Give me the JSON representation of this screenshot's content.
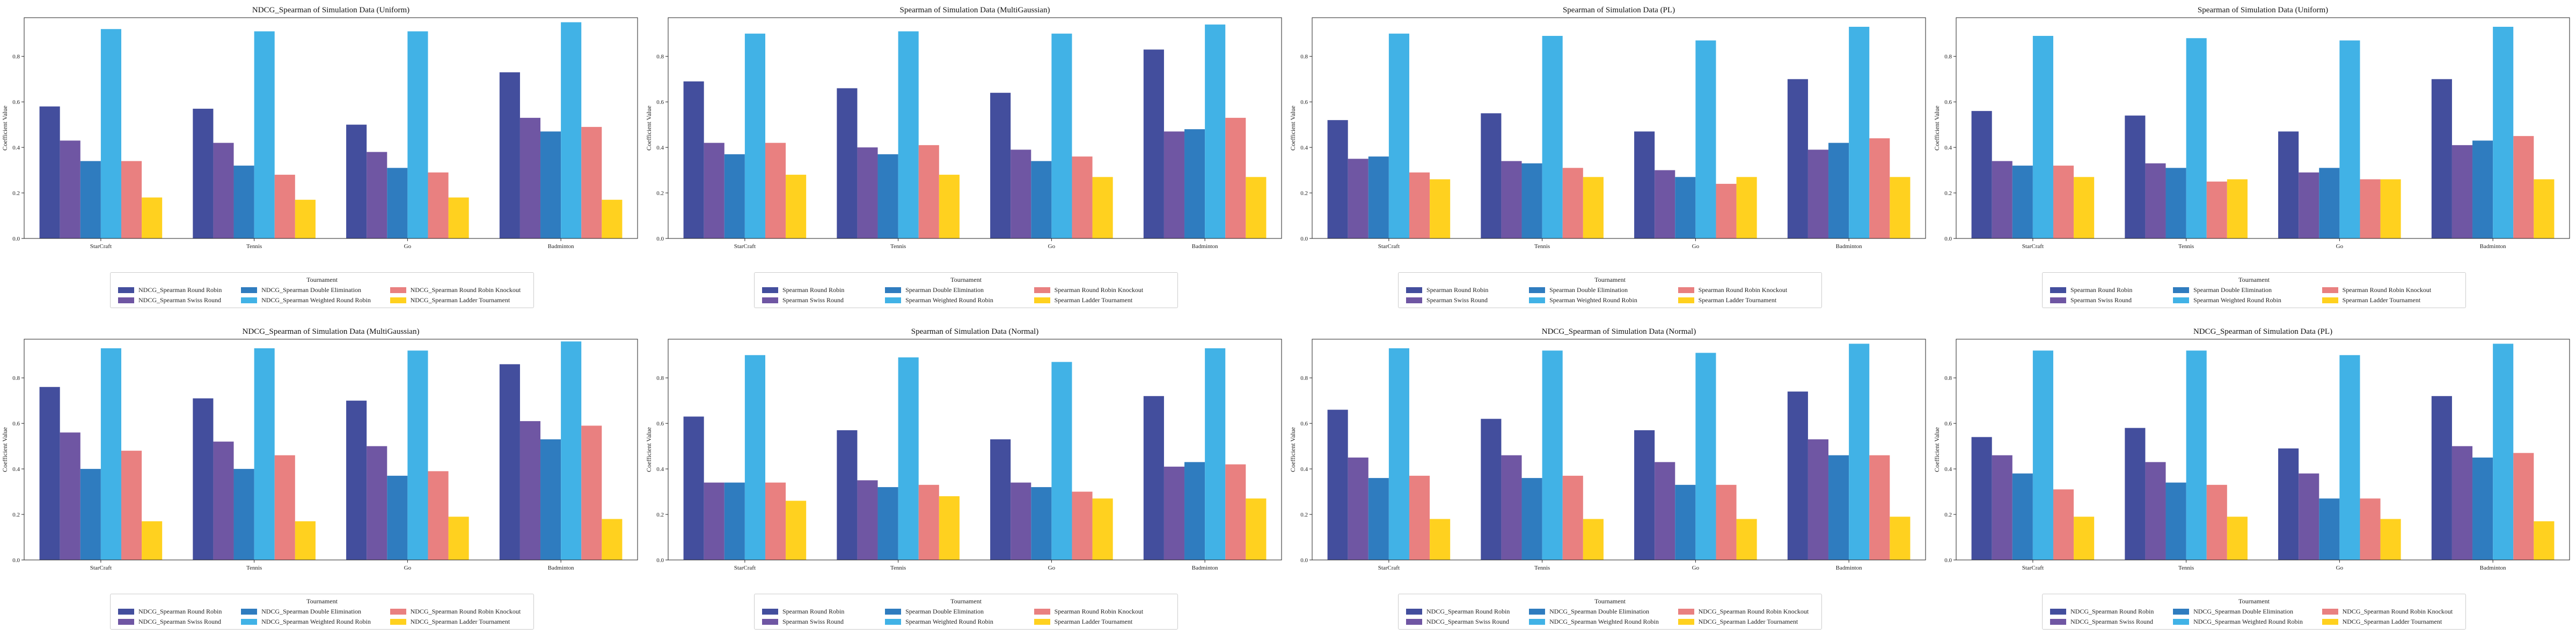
{
  "colors": [
    "#434e9d",
    "#6f56a3",
    "#2f7cbf",
    "#41b2e6",
    "#e98080",
    "#ffd11f"
  ],
  "chart_data": [
    {
      "type": "bar",
      "title": "NDCG_Spearman of Simulation Data (Uniform)",
      "ylabel": "Coefficient Value",
      "ylim": [
        0,
        0.97
      ],
      "yticks": [
        "0.0",
        "0.2",
        "0.4",
        "0.6",
        "0.8"
      ],
      "categories": [
        "StarCraft",
        "Tennis",
        "Go",
        "Badminton"
      ],
      "legend_title": "Tournament",
      "series": [
        {
          "name": "NDCG_Spearman Round Robin",
          "values": [
            0.58,
            0.57,
            0.5,
            0.73
          ]
        },
        {
          "name": "NDCG_Spearman Swiss Round",
          "values": [
            0.43,
            0.42,
            0.38,
            0.53
          ]
        },
        {
          "name": "NDCG_Spearman Double Elimination",
          "values": [
            0.34,
            0.32,
            0.31,
            0.47
          ]
        },
        {
          "name": "NDCG_Spearman Weighted Round Robin",
          "values": [
            0.92,
            0.91,
            0.91,
            0.95
          ]
        },
        {
          "name": "NDCG_Spearman Round Robin Knockout",
          "values": [
            0.34,
            0.28,
            0.29,
            0.49
          ]
        },
        {
          "name": "NDCG_Spearman Ladder Tournament",
          "values": [
            0.18,
            0.17,
            0.18,
            0.17
          ]
        }
      ]
    },
    {
      "type": "bar",
      "title": "Spearman of Simulation Data (MultiGaussian)",
      "ylabel": "Coefficient Value",
      "ylim": [
        0,
        0.97
      ],
      "yticks": [
        "0.0",
        "0.2",
        "0.4",
        "0.6",
        "0.8"
      ],
      "categories": [
        "StarCraft",
        "Tennis",
        "Go",
        "Badminton"
      ],
      "legend_title": "Tournament",
      "series": [
        {
          "name": "Spearman Round Robin",
          "values": [
            0.69,
            0.66,
            0.64,
            0.83
          ]
        },
        {
          "name": "Spearman Swiss Round",
          "values": [
            0.42,
            0.4,
            0.39,
            0.47
          ]
        },
        {
          "name": "Spearman Double Elimination",
          "values": [
            0.37,
            0.37,
            0.34,
            0.48
          ]
        },
        {
          "name": "Spearman Weighted Round Robin",
          "values": [
            0.9,
            0.91,
            0.9,
            0.94
          ]
        },
        {
          "name": "Spearman Round Robin Knockout",
          "values": [
            0.42,
            0.41,
            0.36,
            0.53
          ]
        },
        {
          "name": "Spearman Ladder Tournament",
          "values": [
            0.28,
            0.28,
            0.27,
            0.27
          ]
        }
      ]
    },
    {
      "type": "bar",
      "title": "Spearman of Simulation Data (PL)",
      "ylabel": "Coefficient Value",
      "ylim": [
        0,
        0.97
      ],
      "yticks": [
        "0.0",
        "0.2",
        "0.4",
        "0.6",
        "0.8"
      ],
      "categories": [
        "StarCraft",
        "Tennis",
        "Go",
        "Badminton"
      ],
      "legend_title": "Tournament",
      "series": [
        {
          "name": "Spearman Round Robin",
          "values": [
            0.52,
            0.55,
            0.47,
            0.7
          ]
        },
        {
          "name": "Spearman Swiss Round",
          "values": [
            0.35,
            0.34,
            0.3,
            0.39
          ]
        },
        {
          "name": "Spearman Double Elimination",
          "values": [
            0.36,
            0.33,
            0.27,
            0.42
          ]
        },
        {
          "name": "Spearman Weighted Round Robin",
          "values": [
            0.9,
            0.89,
            0.87,
            0.93
          ]
        },
        {
          "name": "Spearman Round Robin Knockout",
          "values": [
            0.29,
            0.31,
            0.24,
            0.44
          ]
        },
        {
          "name": "Spearman Ladder Tournament",
          "values": [
            0.26,
            0.27,
            0.27,
            0.27
          ]
        }
      ]
    },
    {
      "type": "bar",
      "title": "Spearman of Simulation Data (Uniform)",
      "ylabel": "Coefficient Value",
      "ylim": [
        0,
        0.97
      ],
      "yticks": [
        "0.0",
        "0.2",
        "0.4",
        "0.6",
        "0.8"
      ],
      "categories": [
        "StarCraft",
        "Tennis",
        "Go",
        "Badminton"
      ],
      "legend_title": "Tournament",
      "series": [
        {
          "name": "Spearman Round Robin",
          "values": [
            0.56,
            0.54,
            0.47,
            0.7
          ]
        },
        {
          "name": "Spearman Swiss Round",
          "values": [
            0.34,
            0.33,
            0.29,
            0.41
          ]
        },
        {
          "name": "Spearman Double Elimination",
          "values": [
            0.32,
            0.31,
            0.31,
            0.43
          ]
        },
        {
          "name": "Spearman Weighted Round Robin",
          "values": [
            0.89,
            0.88,
            0.87,
            0.93
          ]
        },
        {
          "name": "Spearman Round Robin Knockout",
          "values": [
            0.32,
            0.25,
            0.26,
            0.45
          ]
        },
        {
          "name": "Spearman Ladder Tournament",
          "values": [
            0.27,
            0.26,
            0.26,
            0.26
          ]
        }
      ]
    },
    {
      "type": "bar",
      "title": "NDCG_Spearman of Simulation Data (MultiGaussian)",
      "ylabel": "Coefficient Value",
      "ylim": [
        0,
        0.97
      ],
      "yticks": [
        "0.0",
        "0.2",
        "0.4",
        "0.6",
        "0.8"
      ],
      "categories": [
        "StarCraft",
        "Tennis",
        "Go",
        "Badminton"
      ],
      "legend_title": "Tournament",
      "series": [
        {
          "name": "NDCG_Spearman Round Robin",
          "values": [
            0.76,
            0.71,
            0.7,
            0.86
          ]
        },
        {
          "name": "NDCG_Spearman Swiss Round",
          "values": [
            0.56,
            0.52,
            0.5,
            0.61
          ]
        },
        {
          "name": "NDCG_Spearman Double Elimination",
          "values": [
            0.4,
            0.4,
            0.37,
            0.53
          ]
        },
        {
          "name": "NDCG_Spearman Weighted Round Robin",
          "values": [
            0.93,
            0.93,
            0.92,
            0.96
          ]
        },
        {
          "name": "NDCG_Spearman Round Robin Knockout",
          "values": [
            0.48,
            0.46,
            0.39,
            0.59
          ]
        },
        {
          "name": "NDCG_Spearman Ladder Tournament",
          "values": [
            0.17,
            0.17,
            0.19,
            0.18
          ]
        }
      ]
    },
    {
      "type": "bar",
      "title": "Spearman of Simulation Data (Normal)",
      "ylabel": "Coefficient Value",
      "ylim": [
        0,
        0.97
      ],
      "yticks": [
        "0.0",
        "0.2",
        "0.4",
        "0.6",
        "0.8"
      ],
      "categories": [
        "StarCraft",
        "Tennis",
        "Go",
        "Badminton"
      ],
      "legend_title": "Tournament",
      "series": [
        {
          "name": "Spearman Round Robin",
          "values": [
            0.63,
            0.57,
            0.53,
            0.72
          ]
        },
        {
          "name": "Spearman Swiss Round",
          "values": [
            0.34,
            0.35,
            0.34,
            0.41
          ]
        },
        {
          "name": "Spearman Double Elimination",
          "values": [
            0.34,
            0.32,
            0.32,
            0.43
          ]
        },
        {
          "name": "Spearman Weighted Round Robin",
          "values": [
            0.9,
            0.89,
            0.87,
            0.93
          ]
        },
        {
          "name": "Spearman Round Robin Knockout",
          "values": [
            0.34,
            0.33,
            0.3,
            0.42
          ]
        },
        {
          "name": "Spearman Ladder Tournament",
          "values": [
            0.26,
            0.28,
            0.27,
            0.27
          ]
        }
      ]
    },
    {
      "type": "bar",
      "title": "NDCG_Spearman of Simulation Data (Normal)",
      "ylabel": "Coefficient Value",
      "ylim": [
        0,
        0.97
      ],
      "yticks": [
        "0.0",
        "0.2",
        "0.4",
        "0.6",
        "0.8"
      ],
      "categories": [
        "StarCraft",
        "Tennis",
        "Go",
        "Badminton"
      ],
      "legend_title": "Tournament",
      "series": [
        {
          "name": "NDCG_Spearman Round Robin",
          "values": [
            0.66,
            0.62,
            0.57,
            0.74
          ]
        },
        {
          "name": "NDCG_Spearman Swiss Round",
          "values": [
            0.45,
            0.46,
            0.43,
            0.53
          ]
        },
        {
          "name": "NDCG_Spearman Double Elimination",
          "values": [
            0.36,
            0.36,
            0.33,
            0.46
          ]
        },
        {
          "name": "NDCG_Spearman Weighted Round Robin",
          "values": [
            0.93,
            0.92,
            0.91,
            0.95
          ]
        },
        {
          "name": "NDCG_Spearman Round Robin Knockout",
          "values": [
            0.37,
            0.37,
            0.33,
            0.46
          ]
        },
        {
          "name": "NDCG_Spearman Ladder Tournament",
          "values": [
            0.18,
            0.18,
            0.18,
            0.19
          ]
        }
      ]
    },
    {
      "type": "bar",
      "title": "NDCG_Spearman of Simulation Data (PL)",
      "ylabel": "Coefficient Value",
      "ylim": [
        0,
        0.97
      ],
      "yticks": [
        "0.0",
        "0.2",
        "0.4",
        "0.6",
        "0.8"
      ],
      "categories": [
        "StarCraft",
        "Tennis",
        "Go",
        "Badminton"
      ],
      "legend_title": "Tournament",
      "series": [
        {
          "name": "NDCG_Spearman Round Robin",
          "values": [
            0.54,
            0.58,
            0.49,
            0.72
          ]
        },
        {
          "name": "NDCG_Spearman Swiss Round",
          "values": [
            0.46,
            0.43,
            0.38,
            0.5
          ]
        },
        {
          "name": "NDCG_Spearman Double Elimination",
          "values": [
            0.38,
            0.34,
            0.27,
            0.45
          ]
        },
        {
          "name": "NDCG_Spearman Weighted Round Robin",
          "values": [
            0.92,
            0.92,
            0.9,
            0.95
          ]
        },
        {
          "name": "NDCG_Spearman Round Robin Knockout",
          "values": [
            0.31,
            0.33,
            0.27,
            0.47
          ]
        },
        {
          "name": "NDCG_Spearman Ladder Tournament",
          "values": [
            0.19,
            0.19,
            0.18,
            0.17
          ]
        }
      ]
    }
  ]
}
